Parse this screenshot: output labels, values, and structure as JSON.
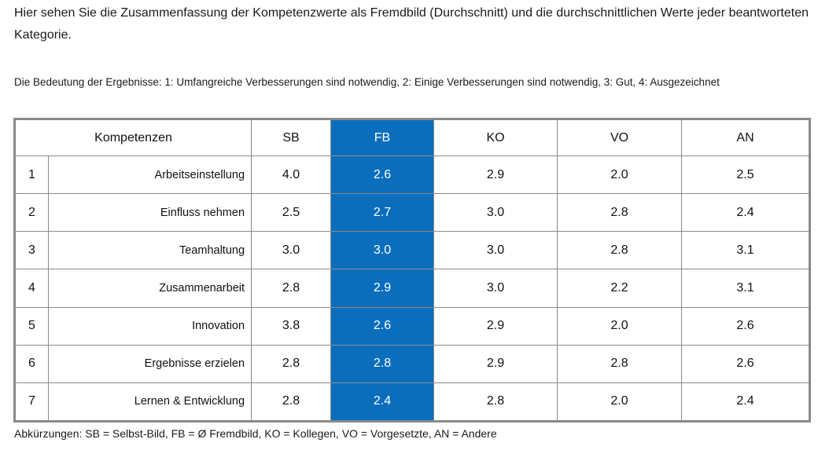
{
  "intro_text": "Hier sehen Sie die Zusammenfassung der Kompetenzwerte als Fremdbild  (Durchschnitt) und die durchschnittlichen Werte jeder beantworteten Kategorie.",
  "legend_text": "Die Bedeutung der Ergebnisse: 1: Umfangreiche Verbesserungen sind notwendig, 2: Einige Verbesserungen sind notwendig, 3: Gut, 4: Ausgezeichnet",
  "colors": {
    "highlight_column": "#0a6ebd"
  },
  "table": {
    "header": {
      "competencies": "Kompetenzen",
      "sb": "SB",
      "fb": "FB",
      "ko": "KO",
      "vo": "VO",
      "an": "AN"
    },
    "rows": [
      {
        "num": "1",
        "name": "Arbeitseinstellung",
        "sb": "4.0",
        "fb": "2.6",
        "ko": "2.9",
        "vo": "2.0",
        "an": "2.5"
      },
      {
        "num": "2",
        "name": "Einfluss nehmen",
        "sb": "2.5",
        "fb": "2.7",
        "ko": "3.0",
        "vo": "2.8",
        "an": "2.4"
      },
      {
        "num": "3",
        "name": "Teamhaltung",
        "sb": "3.0",
        "fb": "3.0",
        "ko": "3.0",
        "vo": "2.8",
        "an": "3.1"
      },
      {
        "num": "4",
        "name": "Zusammenarbeit",
        "sb": "2.8",
        "fb": "2.9",
        "ko": "3.0",
        "vo": "2.2",
        "an": "3.1"
      },
      {
        "num": "5",
        "name": "Innovation",
        "sb": "3.8",
        "fb": "2.6",
        "ko": "2.9",
        "vo": "2.0",
        "an": "2.6"
      },
      {
        "num": "6",
        "name": "Ergebnisse erzielen",
        "sb": "2.8",
        "fb": "2.8",
        "ko": "2.9",
        "vo": "2.8",
        "an": "2.6"
      },
      {
        "num": "7",
        "name": "Lernen & Entwicklung",
        "sb": "2.8",
        "fb": "2.4",
        "ko": "2.8",
        "vo": "2.0",
        "an": "2.4"
      }
    ]
  },
  "abbreviations": "Abkürzungen: SB = Selbst-Bild, FB = Ø Fremdbild, KO = Kollegen, VO = Vorgesetzte, AN = Andere"
}
